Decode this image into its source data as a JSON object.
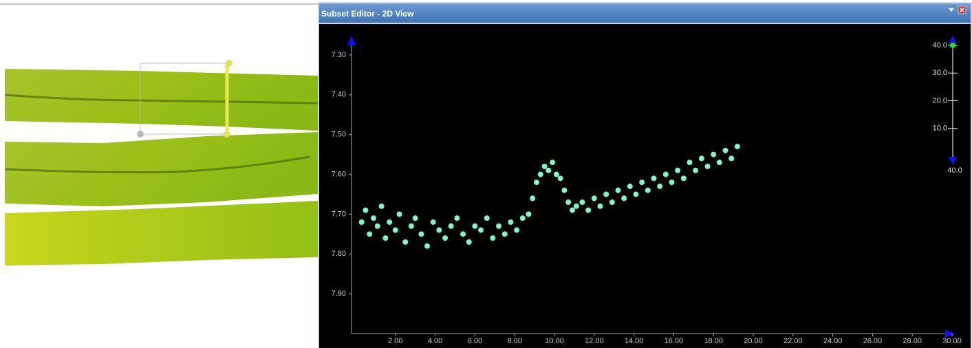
{
  "window": {
    "title": "Subset Editor - 2D View"
  },
  "chart_data": {
    "type": "scatter",
    "color": "#7ff5d2",
    "x": [
      0.3,
      0.5,
      0.7,
      0.9,
      1.1,
      1.3,
      1.5,
      1.7,
      2.0,
      2.2,
      2.5,
      2.8,
      3.0,
      3.3,
      3.6,
      3.9,
      4.2,
      4.5,
      4.8,
      5.1,
      5.4,
      5.7,
      6.0,
      6.3,
      6.6,
      6.9,
      7.2,
      7.5,
      7.8,
      8.1,
      8.4,
      8.7,
      8.9,
      9.1,
      9.3,
      9.5,
      9.7,
      9.9,
      10.1,
      10.3,
      10.5,
      10.7,
      10.9,
      11.1,
      11.4,
      11.7,
      12.0,
      12.3,
      12.6,
      12.9,
      13.2,
      13.5,
      13.8,
      14.1,
      14.4,
      14.7,
      15.0,
      15.3,
      15.6,
      15.9,
      16.2,
      16.5,
      16.8,
      17.1,
      17.4,
      17.7,
      18.0,
      18.3,
      18.6,
      18.9,
      19.2
    ],
    "values": [
      7.72,
      7.69,
      7.75,
      7.71,
      7.73,
      7.68,
      7.76,
      7.72,
      7.74,
      7.7,
      7.77,
      7.73,
      7.71,
      7.75,
      7.78,
      7.72,
      7.74,
      7.76,
      7.73,
      7.71,
      7.75,
      7.77,
      7.73,
      7.74,
      7.71,
      7.76,
      7.73,
      7.75,
      7.72,
      7.74,
      7.71,
      7.7,
      7.66,
      7.62,
      7.6,
      7.58,
      7.59,
      7.57,
      7.6,
      7.61,
      7.64,
      7.67,
      7.69,
      7.68,
      7.67,
      7.69,
      7.66,
      7.68,
      7.65,
      7.67,
      7.64,
      7.66,
      7.63,
      7.65,
      7.62,
      7.64,
      7.61,
      7.63,
      7.6,
      7.62,
      7.59,
      7.61,
      7.57,
      7.59,
      7.56,
      7.58,
      7.55,
      7.57,
      7.54,
      7.56,
      7.53
    ],
    "xlim": [
      0,
      30
    ],
    "ylim": [
      8.0,
      7.25
    ],
    "xticks": [
      {
        "value": 2,
        "label": "2.00"
      },
      {
        "value": 4,
        "label": "4.00"
      },
      {
        "value": 6,
        "label": "6.00"
      },
      {
        "value": 8,
        "label": "8.00"
      },
      {
        "value": 10,
        "label": "10.00"
      },
      {
        "value": 12,
        "label": "12.00"
      },
      {
        "value": 14,
        "label": "14.00"
      },
      {
        "value": 16,
        "label": "16.00"
      },
      {
        "value": 18,
        "label": "18.00"
      },
      {
        "value": 20,
        "label": "20.00"
      },
      {
        "value": 22,
        "label": "22.00"
      },
      {
        "value": 24,
        "label": "24.00"
      },
      {
        "value": 26,
        "label": "26.00"
      },
      {
        "value": 28,
        "label": "28.00"
      },
      {
        "value": 30,
        "label": "30.00"
      }
    ],
    "yticks": [
      {
        "value": 7.3,
        "label": "7.30"
      },
      {
        "value": 7.4,
        "label": "7.40"
      },
      {
        "value": 7.5,
        "label": "7.50"
      },
      {
        "value": 7.6,
        "label": "7.60"
      },
      {
        "value": 7.7,
        "label": "7.70"
      },
      {
        "value": 7.8,
        "label": "7.80"
      },
      {
        "value": 7.9,
        "label": "7.90"
      }
    ]
  },
  "depth_slider": {
    "lim": [
      0,
      40
    ],
    "ticks": [
      {
        "value": 40,
        "label": "40.0"
      },
      {
        "value": 30,
        "label": "30.0"
      },
      {
        "value": 20,
        "label": "20.0"
      },
      {
        "value": 10,
        "label": "10.0"
      }
    ],
    "end_label": "40.0",
    "handle": 40
  }
}
